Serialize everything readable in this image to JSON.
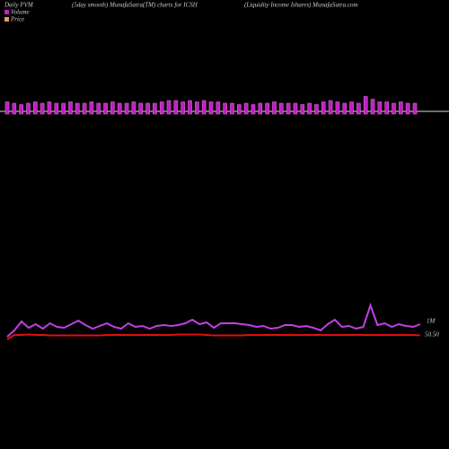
{
  "chart_data": {
    "type": "pvm",
    "title": "Daily PVM",
    "subtitle": "(5day smooth) MunafaSutra(TM) charts for ICSH",
    "source": "(Liquidity Income  Ishares) MunafaSutra.com",
    "volume_label": "1M",
    "price_label": "50.50",
    "bars": {
      "name": "Volume",
      "color": "#c020c0",
      "values": [
        9,
        8,
        7,
        8,
        9,
        8,
        9,
        8,
        8,
        9,
        8,
        8,
        9,
        8,
        8,
        9,
        8,
        8,
        9,
        8,
        8,
        8,
        9,
        10,
        10,
        9,
        10,
        9,
        10,
        9,
        9,
        8,
        8,
        7,
        8,
        7,
        8,
        8,
        9,
        8,
        8,
        8,
        7,
        8,
        7,
        9,
        10,
        9,
        8,
        9,
        8,
        13,
        11,
        9,
        9,
        8,
        9,
        8,
        8
      ],
      "ylim": [
        0,
        20
      ]
    },
    "series": [
      {
        "name": "Price",
        "color": "#e01010",
        "axis": "y2",
        "values": [
          50.49,
          50.5,
          50.5,
          50.501,
          50.5,
          50.5,
          50.499,
          50.499,
          50.499,
          50.499,
          50.499,
          50.499,
          50.499,
          50.499,
          50.5,
          50.5,
          50.5,
          50.5,
          50.5,
          50.5,
          50.5,
          50.5,
          50.5,
          50.5,
          50.501,
          50.501,
          50.501,
          50.501,
          50.5,
          50.499,
          50.499,
          50.499,
          50.499,
          50.499,
          50.5,
          50.5,
          50.5,
          50.5,
          50.5,
          50.5,
          50.5,
          50.5,
          50.5,
          50.5,
          50.5,
          50.5,
          50.5,
          50.5,
          50.5,
          50.5,
          50.5,
          50.5,
          50.5,
          50.5,
          50.5,
          50.5,
          50.5,
          50.5,
          50.499
        ]
      },
      {
        "name": "Volume",
        "color": "#c040e0",
        "values": [
          3,
          10,
          20,
          13,
          17,
          12,
          18,
          14,
          13,
          17,
          21,
          16,
          12,
          15,
          18,
          14,
          12,
          18,
          14,
          15,
          12,
          15,
          16,
          15,
          16,
          18,
          22,
          17,
          19,
          13,
          18,
          18,
          18,
          17,
          16,
          14,
          15,
          12,
          13,
          16,
          16,
          14,
          15,
          13,
          10,
          17,
          22,
          14,
          15,
          12,
          14,
          38,
          16,
          18,
          14,
          17,
          15,
          14,
          17
        ]
      }
    ],
    "ylim": [
      0,
      50
    ],
    "y2lim": [
      50.49,
      50.59
    ]
  }
}
